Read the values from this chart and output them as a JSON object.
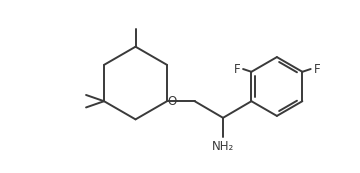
{
  "bg_color": "#ffffff",
  "line_color": "#3a3a3a",
  "line_width": 1.4,
  "font_size": 8.5,
  "label_color": "#3a3a3a",
  "figsize": [
    3.6,
    1.73
  ],
  "dpi": 100,
  "xlim": [
    0,
    10
  ],
  "ylim": [
    0,
    5
  ]
}
